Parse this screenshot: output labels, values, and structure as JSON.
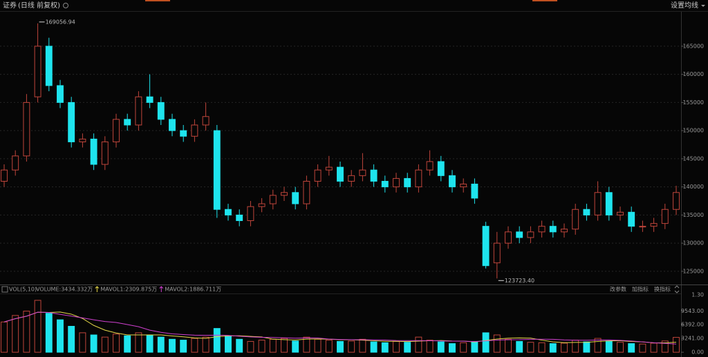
{
  "header": {
    "title": "证券",
    "subtitle": "(日线 前复权)",
    "ma_button": "设置均线"
  },
  "chart_data": [
    {
      "type": "candlestick",
      "open": [
        141000,
        143000,
        145500,
        156000,
        165000,
        158000,
        155000,
        148000,
        148500,
        144000,
        148000,
        152000,
        151000,
        156000,
        155000,
        152000,
        150000,
        149000,
        151000,
        150000,
        136000,
        135000,
        134000,
        136500,
        137000,
        138500,
        139000,
        137000,
        141000,
        143000,
        143500,
        141000,
        142000,
        143000,
        141000,
        140000,
        141500,
        140000,
        143000,
        144500,
        142000,
        140000,
        140500,
        133000,
        126500,
        130000,
        132000,
        131000,
        132000,
        133000,
        132000,
        132500,
        136000,
        135000,
        139000,
        135000,
        135500,
        133000,
        133000,
        133500,
        136000
      ],
      "high": [
        144000,
        146500,
        156500,
        169056.94,
        166500,
        159000,
        156000,
        149500,
        149500,
        149000,
        153000,
        153000,
        157000,
        160000,
        156000,
        153000,
        151000,
        152000,
        155000,
        151000,
        137000,
        136000,
        137500,
        138000,
        139500,
        140000,
        140000,
        142000,
        144000,
        145500,
        144500,
        143000,
        146000,
        144000,
        142000,
        142500,
        142500,
        144000,
        146500,
        145500,
        143000,
        141500,
        141500,
        133800,
        132000,
        133000,
        133000,
        133000,
        134000,
        134000,
        133500,
        137000,
        137000,
        141000,
        140000,
        136500,
        136500,
        134000,
        134500,
        137000,
        140200
      ],
      "low": [
        140000,
        142000,
        144500,
        155000,
        157000,
        154000,
        147000,
        147000,
        143000,
        143000,
        147000,
        150000,
        150000,
        154000,
        151000,
        149000,
        148000,
        148000,
        150000,
        134500,
        134000,
        133000,
        133000,
        135500,
        136000,
        137500,
        136000,
        136000,
        140000,
        142000,
        140000,
        140000,
        141000,
        140000,
        139000,
        139000,
        139000,
        139000,
        142000,
        141000,
        139000,
        139000,
        137000,
        125500,
        123723.4,
        129000,
        130000,
        130000,
        131000,
        131000,
        131000,
        131500,
        134000,
        134000,
        134000,
        134000,
        132000,
        132000,
        132000,
        132500,
        135000
      ],
      "close": [
        143000,
        145500,
        155000,
        165000,
        158000,
        155000,
        148000,
        148500,
        144000,
        148000,
        152000,
        151000,
        156000,
        155000,
        152000,
        150000,
        149000,
        151000,
        152500,
        136000,
        135000,
        134000,
        136500,
        137000,
        138500,
        139000,
        137000,
        141000,
        143000,
        143500,
        141000,
        142000,
        143000,
        141000,
        140000,
        141500,
        140000,
        143000,
        144500,
        142000,
        140000,
        140500,
        138000,
        126000,
        130000,
        132000,
        131000,
        132000,
        133000,
        132000,
        132500,
        136000,
        135000,
        139000,
        135000,
        135500,
        133000,
        133000,
        133500,
        136000,
        139000
      ],
      "ylim": [
        122900,
        171000
      ],
      "yticks": [
        125000,
        130000,
        135000,
        140000,
        145000,
        150000,
        155000,
        160000,
        165000
      ],
      "grid": true,
      "up_color": "#c0453b",
      "down_color": "#1ee4ee",
      "annotations": [
        "169056.94",
        "123723.40"
      ]
    },
    {
      "type": "bar",
      "indicator": "VOL(5,10)",
      "legend": [
        "VOLUME:3434.332万",
        "MAVOL1:2309.875万",
        "MAVOL2:1886.711万"
      ],
      "legend_color": "#e0e0e0",
      "buttons": [
        "改参数",
        "加指标",
        "换指标"
      ],
      "values": [
        7000,
        8500,
        9500,
        12000,
        9000,
        7500,
        6000,
        4500,
        4000,
        3500,
        4200,
        3800,
        4500,
        4000,
        3500,
        3000,
        2800,
        3200,
        3500,
        5500,
        3800,
        3000,
        2500,
        2800,
        3000,
        3200,
        2600,
        3500,
        3000,
        2800,
        2500,
        2600,
        3000,
        2400,
        2200,
        2500,
        2300,
        3500,
        2800,
        2400,
        2000,
        2200,
        2500,
        4500,
        4000,
        3000,
        2500,
        2300,
        2200,
        2000,
        2100,
        2800,
        2400,
        3200,
        2600,
        2300,
        2000,
        1900,
        2100,
        2600,
        3434.332
      ],
      "series": [
        {
          "color": "#e6d84a",
          "values": [
            7000,
            7750,
            8333,
            9250,
            9200,
            9300,
            8800,
            7800,
            6200,
            5100,
            4440,
            4000,
            4000,
            4000,
            4000,
            3760,
            3560,
            3300,
            3200,
            3600,
            3760,
            3800,
            3660,
            3520,
            3020,
            2900,
            2820,
            3020,
            3060,
            3020,
            2880,
            2880,
            2780,
            2660,
            2540,
            2540,
            2480,
            2580,
            2660,
            2700,
            2600,
            2580,
            2380,
            2720,
            3040,
            3240,
            3300,
            3260,
            2800,
            2400,
            2220,
            2280,
            2300,
            2500,
            2620,
            2660,
            2500,
            2400,
            2180,
            2180,
            2309.875
          ]
        },
        {
          "color": "#d040d0",
          "values": [
            7000,
            7750,
            8333,
            9250,
            9200,
            8750,
            8357,
            7937,
            7500,
            7100,
            6870,
            6400,
            5900,
            5100,
            4600,
            4250,
            4080,
            3950,
            3900,
            3950,
            3880,
            3700,
            3540,
            3450,
            3400,
            3330,
            3250,
            3300,
            3280,
            3040,
            2950,
            2900,
            2880,
            2840,
            2800,
            2710,
            2680,
            2680,
            2660,
            2620,
            2570,
            2560,
            2480,
            2620,
            2800,
            2890,
            2900,
            2980,
            3010,
            2990,
            2840,
            2760,
            2770,
            2800,
            2830,
            2750,
            2600,
            2400,
            2200,
            2050,
            1886.711
          ]
        }
      ],
      "ylim": [
        -1100,
        13900
      ],
      "yticks": [
        {
          "value": 0,
          "label": "0.00"
        },
        {
          "value": 3241,
          "label": "3241.00"
        },
        {
          "value": 6392,
          "label": "6392.00"
        },
        {
          "value": 9543,
          "label": "9543.00"
        }
      ],
      "top_label": "1.30"
    }
  ]
}
